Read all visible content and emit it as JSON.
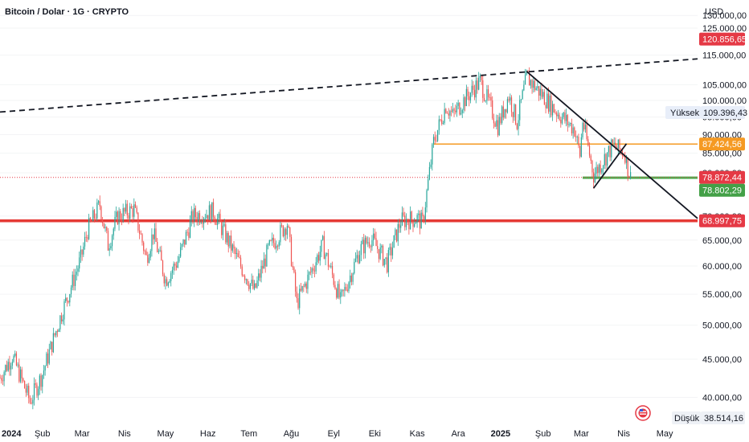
{
  "header": {
    "title": "Bitcoin / Dolar · 1G · CRYPTO",
    "currency": "USD"
  },
  "colors": {
    "up": "#26a69a",
    "down": "#ef5350",
    "support_red": "#e53935",
    "resistance_orange": "#f59a23",
    "support_green": "#4caf50",
    "trend_black": "#131722",
    "badge_current": "#e53945",
    "badge_green": "#43a047",
    "badge_orange": "#f59a23"
  },
  "chart_data": {
    "type": "candlestick",
    "y_scale": "log",
    "ylim": [
      37000,
      135000
    ],
    "x_range": [
      "2024-01-01",
      "2025-05-25"
    ],
    "x_ticks": [
      {
        "date": "2024-01-01",
        "label": "2024",
        "bold": true
      },
      {
        "date": "2024-02-01",
        "label": "Şub"
      },
      {
        "date": "2024-03-01",
        "label": "Mar"
      },
      {
        "date": "2024-04-01",
        "label": "Nis"
      },
      {
        "date": "2024-05-01",
        "label": "May"
      },
      {
        "date": "2024-06-01",
        "label": "Haz"
      },
      {
        "date": "2024-07-01",
        "label": "Tem"
      },
      {
        "date": "2024-08-01",
        "label": "Ağu"
      },
      {
        "date": "2024-09-01",
        "label": "Eyl"
      },
      {
        "date": "2024-10-01",
        "label": "Eki"
      },
      {
        "date": "2024-11-01",
        "label": "Kas"
      },
      {
        "date": "2024-12-01",
        "label": "Ara"
      },
      {
        "date": "2025-01-01",
        "label": "2025",
        "bold": true
      },
      {
        "date": "2025-02-01",
        "label": "Şub"
      },
      {
        "date": "2025-03-01",
        "label": "Mar"
      },
      {
        "date": "2025-04-01",
        "label": "Nis"
      },
      {
        "date": "2025-05-01",
        "label": "May"
      }
    ],
    "y_ticks": [
      {
        "value": 130000,
        "label": "130.000,00"
      },
      {
        "value": 125000,
        "label": "125.000,00"
      },
      {
        "value": 115000,
        "label": "115.000,00"
      },
      {
        "value": 105000,
        "label": "105.000,00"
      },
      {
        "value": 100000,
        "label": "100.000,00"
      },
      {
        "value": 95000,
        "label": "95.000,00"
      },
      {
        "value": 90000,
        "label": "90.000,00"
      },
      {
        "value": 85000,
        "label": "85.000,00"
      },
      {
        "value": 80000,
        "label": "80.000,00"
      },
      {
        "value": 70000,
        "label": "70.000,00"
      },
      {
        "value": 65000,
        "label": "65.000,00"
      },
      {
        "value": 60000,
        "label": "60.000,00"
      },
      {
        "value": 55000,
        "label": "55.000,00"
      },
      {
        "value": 50000,
        "label": "50.000,00"
      },
      {
        "value": 45000,
        "label": "45.000,00"
      },
      {
        "value": 40000,
        "label": "40.000,00"
      }
    ],
    "price_badges": [
      {
        "value": 120856.65,
        "label": "120.856,65",
        "color": "#e53945"
      },
      {
        "value": 87424.56,
        "label": "87.424,56",
        "color": "#f59a23"
      },
      {
        "value": 78872.44,
        "label": "78.872,44",
        "color": "#e53945"
      },
      {
        "value": 78802.29,
        "label": "78.802,29",
        "color": "#43a047"
      },
      {
        "value": 68997.75,
        "label": "68.997,75",
        "color": "#e53945"
      }
    ],
    "high_low": [
      {
        "label": "Yüksek",
        "value": 109396.43,
        "value_label": "109.396,43"
      },
      {
        "label": "Düşük",
        "value": 38514.16,
        "value_label": "38.514,16"
      }
    ],
    "current_price": 78872.44,
    "horizontal_levels": [
      {
        "name": "support-red",
        "value": 68997.75,
        "from": "2024-01-01",
        "to": "2025-05-25",
        "color": "#e53935",
        "width": 3.5
      },
      {
        "name": "resistance-orange",
        "value": 87424.56,
        "from": "2024-11-13",
        "to": "2025-05-25",
        "color": "#f59a23",
        "width": 1.5
      },
      {
        "name": "support-green",
        "value": 78802.29,
        "from": "2025-03-02",
        "to": "2025-05-25",
        "color": "#4caf50",
        "width": 3
      }
    ],
    "trend_lines": [
      {
        "name": "upper-trend-dashed",
        "from": [
          "2024-01-01",
          96500
        ],
        "to": [
          "2025-05-25",
          113700
        ],
        "dashed": true
      },
      {
        "name": "descending-trend",
        "from": [
          "2025-01-20",
          109396
        ],
        "to": [
          "2025-05-25",
          69500
        ],
        "dashed": false
      },
      {
        "name": "rising-wedge-line",
        "from": [
          "2025-03-10",
          76300
        ],
        "to": [
          "2025-04-03",
          87500
        ],
        "dashed": false
      }
    ],
    "price_anchors": [
      [
        "2024-01-01",
        42500
      ],
      [
        "2024-01-10",
        45500
      ],
      [
        "2024-01-23",
        39500
      ],
      [
        "2024-02-01",
        43000
      ],
      [
        "2024-02-15",
        51800
      ],
      [
        "2024-02-29",
        61300
      ],
      [
        "2024-03-05",
        67000
      ],
      [
        "2024-03-14",
        72500
      ],
      [
        "2024-03-20",
        64000
      ],
      [
        "2024-03-27",
        70000
      ],
      [
        "2024-04-08",
        71500
      ],
      [
        "2024-04-17",
        61500
      ],
      [
        "2024-04-22",
        66500
      ],
      [
        "2024-05-01",
        57500
      ],
      [
        "2024-05-10",
        61000
      ],
      [
        "2024-05-21",
        70000
      ],
      [
        "2024-06-05",
        71000
      ],
      [
        "2024-06-24",
        60500
      ],
      [
        "2024-07-05",
        55500
      ],
      [
        "2024-07-15",
        63000
      ],
      [
        "2024-07-29",
        68500
      ],
      [
        "2024-08-05",
        53500
      ],
      [
        "2024-08-24",
        64000
      ],
      [
        "2024-09-06",
        53800
      ],
      [
        "2024-09-20",
        63000
      ],
      [
        "2024-09-28",
        65500
      ],
      [
        "2024-10-10",
        60500
      ],
      [
        "2024-10-20",
        69000
      ],
      [
        "2024-11-01",
        69500
      ],
      [
        "2024-11-05",
        68500
      ],
      [
        "2024-11-13",
        88000
      ],
      [
        "2024-11-22",
        98500
      ],
      [
        "2024-11-27",
        95500
      ],
      [
        "2024-12-05",
        100000
      ],
      [
        "2024-12-17",
        106000
      ],
      [
        "2024-12-30",
        92500
      ],
      [
        "2025-01-07",
        101500
      ],
      [
        "2025-01-13",
        93500
      ],
      [
        "2025-01-20",
        107500
      ],
      [
        "2025-01-31",
        102000
      ],
      [
        "2025-02-10",
        97000
      ],
      [
        "2025-02-24",
        91500
      ],
      [
        "2025-02-28",
        84500
      ],
      [
        "2025-03-02",
        94000
      ],
      [
        "2025-03-10",
        79500
      ],
      [
        "2025-03-24",
        87000
      ],
      [
        "2025-04-02",
        85000
      ],
      [
        "2025-04-03",
        82500
      ],
      [
        "2025-04-06",
        78872
      ]
    ]
  }
}
